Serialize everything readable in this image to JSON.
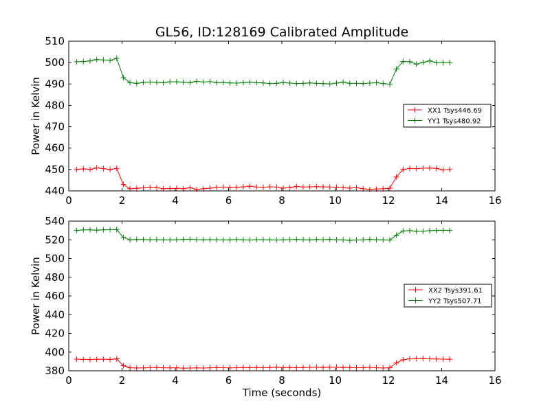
{
  "chart_data": [
    {
      "type": "line",
      "title": "GL56, ID:128169 Calibrated Amplitude",
      "xlabel": "",
      "ylabel": "Power in Kelvin",
      "xlim": [
        0,
        16
      ],
      "ylim": [
        440,
        510
      ],
      "xticks": [
        "0",
        "2",
        "4",
        "6",
        "8",
        "10",
        "12",
        "14",
        "16"
      ],
      "yticks": [
        "440",
        "450",
        "460",
        "470",
        "480",
        "490",
        "500",
        "510"
      ],
      "legend_position": "center-right",
      "x": [
        0.3,
        0.55,
        0.8,
        1.05,
        1.3,
        1.55,
        1.8,
        2.05,
        2.3,
        2.55,
        2.8,
        3.05,
        3.3,
        3.55,
        3.8,
        4.05,
        4.3,
        4.55,
        4.8,
        5.05,
        5.3,
        5.55,
        5.8,
        6.05,
        6.3,
        6.55,
        6.8,
        7.05,
        7.3,
        7.55,
        7.8,
        8.05,
        8.3,
        8.55,
        8.8,
        9.05,
        9.3,
        9.55,
        9.8,
        10.05,
        10.3,
        10.55,
        10.8,
        11.05,
        11.3,
        11.55,
        11.8,
        12.05,
        12.3,
        12.55,
        12.8,
        13.05,
        13.3,
        13.55,
        13.8,
        14.05,
        14.3
      ],
      "series": [
        {
          "name": "XX1 Tsys446.69",
          "color": "#ff0000",
          "values": [
            450,
            450.3,
            450,
            450.8,
            450.4,
            450,
            450.5,
            443,
            441,
            441.2,
            441.4,
            441.6,
            441.5,
            441,
            441.1,
            441.2,
            441,
            441.5,
            440.7,
            441,
            441.3,
            441.6,
            441.8,
            441.5,
            441.7,
            441.9,
            442.2,
            441.8,
            441.7,
            441.9,
            441.8,
            441.3,
            441.5,
            442.1,
            441.8,
            441.9,
            442,
            441.9,
            441.8,
            441.7,
            441.6,
            441.3,
            441.5,
            441,
            440.7,
            440.9,
            441,
            441.3,
            446.5,
            450,
            450.5,
            450.4,
            450.6,
            450.7,
            450.5,
            449.8,
            450
          ]
        },
        {
          "name": "YY1 Tsys480.92",
          "color": "#008000",
          "values": [
            500.4,
            500.5,
            500.8,
            501.4,
            501.2,
            501,
            502,
            493,
            490.6,
            490.3,
            490.7,
            490.9,
            490.7,
            490.6,
            491,
            491,
            490.8,
            490.6,
            491.2,
            490.9,
            491.1,
            490.6,
            490.7,
            490.5,
            490.4,
            490.6,
            490.8,
            490.6,
            490.5,
            490.2,
            490.3,
            490.7,
            490.4,
            490.2,
            490.3,
            490.5,
            490.3,
            490.2,
            490,
            490.4,
            490.8,
            490.3,
            490.3,
            490.2,
            490.4,
            490.6,
            490.2,
            489.9,
            497,
            500.5,
            500.4,
            499.3,
            500.1,
            500.8,
            500,
            500,
            500
          ]
        }
      ]
    },
    {
      "type": "line",
      "title": "",
      "xlabel": "Time (seconds)",
      "ylabel": "Power in Kelvin",
      "xlim": [
        0,
        16
      ],
      "ylim": [
        380,
        540
      ],
      "xticks": [
        "0",
        "2",
        "4",
        "6",
        "8",
        "10",
        "12",
        "14",
        "16"
      ],
      "yticks": [
        "380",
        "400",
        "420",
        "440",
        "460",
        "480",
        "500",
        "520",
        "540"
      ],
      "legend_position": "center-right",
      "x": [
        0.3,
        0.55,
        0.8,
        1.05,
        1.3,
        1.55,
        1.8,
        2.05,
        2.3,
        2.55,
        2.8,
        3.05,
        3.3,
        3.55,
        3.8,
        4.05,
        4.3,
        4.55,
        4.8,
        5.05,
        5.3,
        5.55,
        5.8,
        6.05,
        6.3,
        6.55,
        6.8,
        7.05,
        7.3,
        7.55,
        7.8,
        8.05,
        8.3,
        8.55,
        8.8,
        9.05,
        9.3,
        9.55,
        9.8,
        10.05,
        10.3,
        10.55,
        10.8,
        11.05,
        11.3,
        11.55,
        11.8,
        12.05,
        12.3,
        12.55,
        12.8,
        13.05,
        13.3,
        13.55,
        13.8,
        14.05,
        14.3
      ],
      "series": [
        {
          "name": "XX2 Tsys391.61",
          "color": "#ff0000",
          "values": [
            392.5,
            392.2,
            392,
            392.3,
            392.5,
            392.1,
            392.8,
            385.5,
            383.2,
            383,
            383.1,
            383.3,
            383.6,
            383.2,
            383.1,
            383.2,
            382.8,
            382.9,
            383.1,
            382.9,
            383.2,
            383.4,
            383.3,
            383.1,
            383.3,
            383.5,
            383.4,
            383.6,
            383.3,
            383.5,
            383.9,
            383.4,
            383.6,
            383.3,
            383.5,
            383.7,
            383.9,
            383.5,
            383.8,
            383.9,
            383.5,
            383.6,
            383.3,
            383.4,
            383.7,
            383.2,
            383,
            383.2,
            388.5,
            391.8,
            392.8,
            393,
            393.1,
            392.8,
            392.6,
            392.5,
            392.4
          ]
        },
        {
          "name": "YY2 Tsys507.71",
          "color": "#008000",
          "values": [
            530,
            530.6,
            530.7,
            530.3,
            530.6,
            530.8,
            531,
            522.5,
            520,
            520.4,
            520.3,
            520.1,
            520.2,
            520,
            519.9,
            520.1,
            520.4,
            520.6,
            520.2,
            520,
            520.2,
            520.1,
            519.9,
            520,
            520.3,
            520,
            519.8,
            520.2,
            520.1,
            520,
            519.8,
            520,
            520.2,
            520.4,
            520.1,
            519.9,
            520.3,
            520.2,
            520.4,
            520.1,
            519.9,
            519.4,
            519.8,
            520,
            520.4,
            520.1,
            519.9,
            519.7,
            525,
            529.5,
            529.8,
            529.2,
            529.3,
            529.8,
            530,
            530.2,
            530
          ]
        }
      ]
    }
  ]
}
